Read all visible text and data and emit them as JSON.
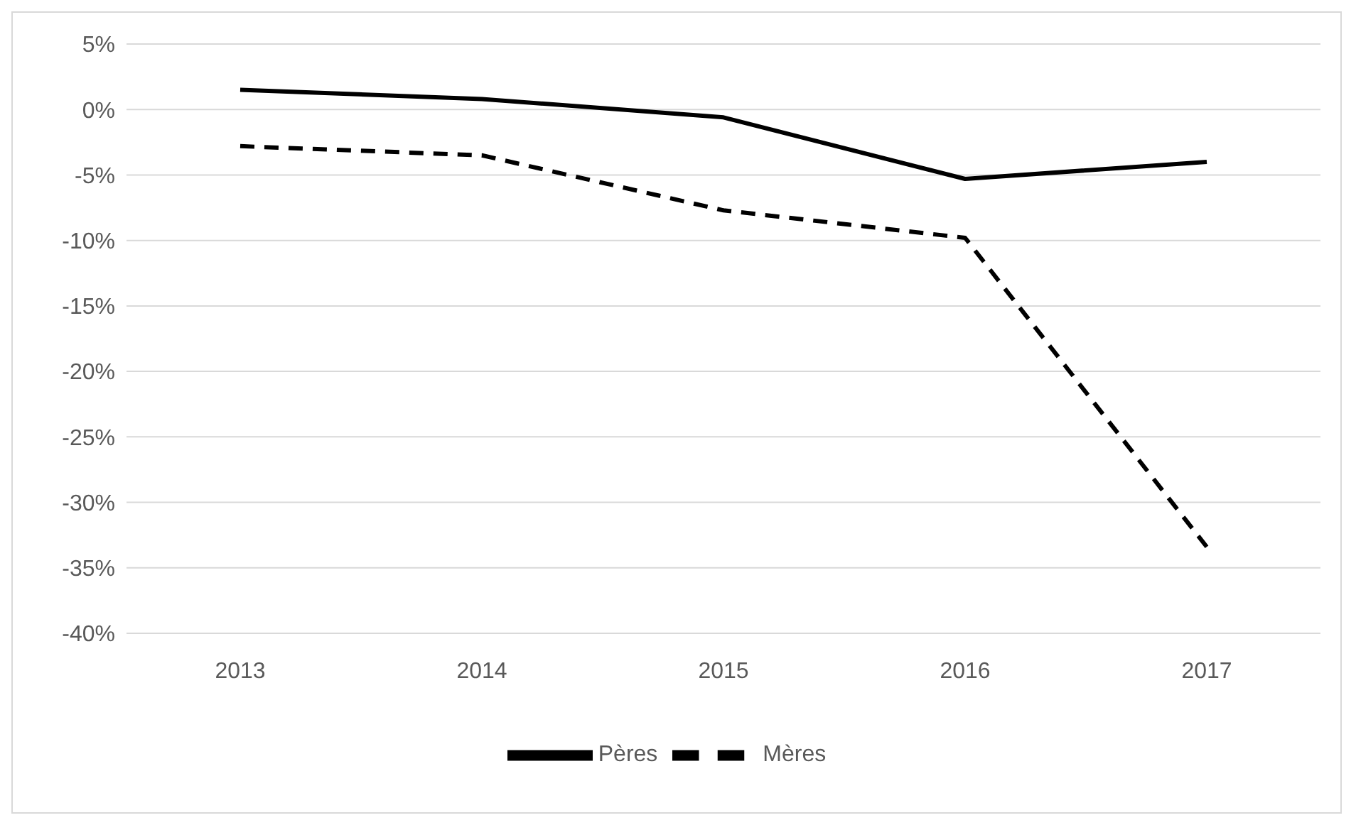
{
  "chart_data": {
    "type": "line",
    "categories": [
      "2013",
      "2014",
      "2015",
      "2016",
      "2017"
    ],
    "series": [
      {
        "name": "Pères",
        "color": "#000000",
        "line_style": "solid",
        "values": [
          1.5,
          0.8,
          -0.6,
          -5.3,
          -4.0
        ]
      },
      {
        "name": "Mères",
        "color": "#000000",
        "line_style": "dashed",
        "values": [
          -2.8,
          -3.5,
          -7.7,
          -9.8,
          -33.4
        ]
      }
    ],
    "ylim": [
      -40,
      5
    ],
    "yticks": [
      {
        "value": 5,
        "label": "5%"
      },
      {
        "value": 0,
        "label": "0%"
      },
      {
        "value": -5,
        "label": "-5%"
      },
      {
        "value": -10,
        "label": "-10%"
      },
      {
        "value": -15,
        "label": "-15%"
      },
      {
        "value": -20,
        "label": "-20%"
      },
      {
        "value": -25,
        "label": "-25%"
      },
      {
        "value": -30,
        "label": "-30%"
      },
      {
        "value": -35,
        "label": "-35%"
      },
      {
        "value": -40,
        "label": "-40%"
      }
    ],
    "grid": "y",
    "legend": "bottom",
    "marker": "none"
  }
}
